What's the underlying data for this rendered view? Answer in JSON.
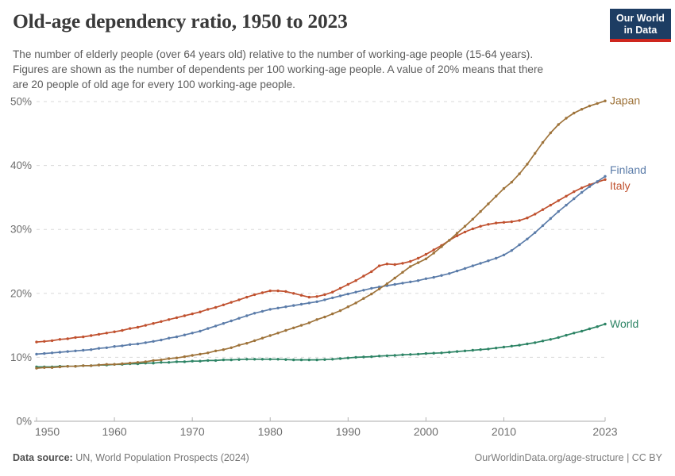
{
  "header": {
    "title": "Old-age dependency ratio, 1950 to 2023",
    "subtitle_lines": [
      "The number of elderly people (over 64 years old) relative to the number of working-age people (15-64 years).",
      "Figures are shown as the number of dependents per 100 working-age people. A value of 20% means that there",
      "are 20 people of old age for every 100 working-age people."
    ],
    "logo": {
      "line1": "Our World",
      "line2": "in Data",
      "bg_color": "#1d3d63",
      "bar_color": "#ce261e"
    }
  },
  "chart_data": {
    "type": "line",
    "title": "Old-age dependency ratio, 1950 to 2023",
    "unit": "%",
    "xlim": [
      1950,
      2023
    ],
    "ylim": [
      0,
      50
    ],
    "x_ticks": [
      1950,
      1960,
      1970,
      1980,
      1990,
      2000,
      2010,
      2023
    ],
    "y_ticks": [
      0,
      10,
      20,
      30,
      40,
      50
    ],
    "grid": "dashed-horizontal",
    "legend_position": "right-end-labels",
    "x": [
      1950,
      1951,
      1952,
      1953,
      1954,
      1955,
      1956,
      1957,
      1958,
      1959,
      1960,
      1961,
      1962,
      1963,
      1964,
      1965,
      1966,
      1967,
      1968,
      1969,
      1970,
      1971,
      1972,
      1973,
      1974,
      1975,
      1976,
      1977,
      1978,
      1979,
      1980,
      1981,
      1982,
      1983,
      1984,
      1985,
      1986,
      1987,
      1988,
      1989,
      1990,
      1991,
      1992,
      1993,
      1994,
      1995,
      1996,
      1997,
      1998,
      1999,
      2000,
      2001,
      2002,
      2003,
      2004,
      2005,
      2006,
      2007,
      2008,
      2009,
      2010,
      2011,
      2012,
      2013,
      2014,
      2015,
      2016,
      2017,
      2018,
      2019,
      2020,
      2021,
      2022,
      2023
    ],
    "series": [
      {
        "name": "Italy",
        "color": "#c0512f",
        "values": [
          12.4,
          12.5,
          12.6,
          12.8,
          12.9,
          13.1,
          13.2,
          13.4,
          13.6,
          13.8,
          14.0,
          14.2,
          14.5,
          14.7,
          15.0,
          15.3,
          15.6,
          15.9,
          16.2,
          16.5,
          16.8,
          17.1,
          17.5,
          17.8,
          18.2,
          18.6,
          19.0,
          19.4,
          19.8,
          20.1,
          20.4,
          20.4,
          20.3,
          20.0,
          19.7,
          19.4,
          19.5,
          19.8,
          20.2,
          20.8,
          21.4,
          22.0,
          22.7,
          23.4,
          24.3,
          24.6,
          24.5,
          24.7,
          25.0,
          25.5,
          26.1,
          26.8,
          27.5,
          28.3,
          29.0,
          29.6,
          30.1,
          30.5,
          30.8,
          31.0,
          31.1,
          31.2,
          31.4,
          31.8,
          32.4,
          33.1,
          33.8,
          34.5,
          35.2,
          35.9,
          36.5,
          37.0,
          37.4,
          37.8
        ]
      },
      {
        "name": "Finland",
        "color": "#5b7ca9",
        "values": [
          10.5,
          10.6,
          10.7,
          10.8,
          10.9,
          11.0,
          11.1,
          11.2,
          11.4,
          11.5,
          11.7,
          11.8,
          12.0,
          12.1,
          12.3,
          12.5,
          12.7,
          13.0,
          13.2,
          13.5,
          13.8,
          14.1,
          14.5,
          14.9,
          15.3,
          15.7,
          16.1,
          16.5,
          16.9,
          17.2,
          17.5,
          17.7,
          17.9,
          18.1,
          18.3,
          18.5,
          18.7,
          19.0,
          19.3,
          19.6,
          19.9,
          20.2,
          20.5,
          20.8,
          21.0,
          21.2,
          21.4,
          21.6,
          21.8,
          22.0,
          22.3,
          22.5,
          22.8,
          23.1,
          23.5,
          23.9,
          24.3,
          24.7,
          25.1,
          25.5,
          26.0,
          26.7,
          27.6,
          28.5,
          29.5,
          30.6,
          31.7,
          32.8,
          33.8,
          34.8,
          35.8,
          36.7,
          37.5,
          38.3
        ]
      },
      {
        "name": "World",
        "color": "#2d8465",
        "values": [
          8.5,
          8.5,
          8.5,
          8.6,
          8.6,
          8.6,
          8.7,
          8.7,
          8.8,
          8.8,
          8.9,
          8.9,
          9.0,
          9.0,
          9.1,
          9.1,
          9.2,
          9.2,
          9.3,
          9.3,
          9.4,
          9.4,
          9.5,
          9.5,
          9.6,
          9.6,
          9.65,
          9.7,
          9.7,
          9.7,
          9.7,
          9.7,
          9.65,
          9.6,
          9.6,
          9.6,
          9.6,
          9.65,
          9.7,
          9.8,
          9.9,
          10.0,
          10.05,
          10.1,
          10.2,
          10.25,
          10.3,
          10.4,
          10.45,
          10.5,
          10.6,
          10.65,
          10.7,
          10.8,
          10.9,
          11.0,
          11.1,
          11.2,
          11.3,
          11.45,
          11.6,
          11.75,
          11.9,
          12.1,
          12.3,
          12.55,
          12.8,
          13.1,
          13.45,
          13.8,
          14.1,
          14.45,
          14.8,
          15.2
        ]
      },
      {
        "name": "Japan",
        "color": "#9e733a",
        "values": [
          8.3,
          8.4,
          8.4,
          8.5,
          8.6,
          8.6,
          8.7,
          8.7,
          8.8,
          8.9,
          8.9,
          9.0,
          9.1,
          9.2,
          9.3,
          9.5,
          9.6,
          9.8,
          9.9,
          10.1,
          10.3,
          10.5,
          10.7,
          11.0,
          11.2,
          11.5,
          11.9,
          12.2,
          12.6,
          13.0,
          13.4,
          13.8,
          14.2,
          14.6,
          15.0,
          15.4,
          15.9,
          16.3,
          16.8,
          17.3,
          17.9,
          18.5,
          19.2,
          19.9,
          20.7,
          21.5,
          22.4,
          23.3,
          24.2,
          24.8,
          25.4,
          26.3,
          27.3,
          28.3,
          29.4,
          30.5,
          31.6,
          32.8,
          34.0,
          35.2,
          36.4,
          37.4,
          38.7,
          40.2,
          41.9,
          43.6,
          45.1,
          46.4,
          47.4,
          48.2,
          48.8,
          49.3,
          49.7,
          50.1
        ]
      }
    ]
  },
  "footer": {
    "source_label": "Data source:",
    "source_text": " UN, World Population Prospects (2024)",
    "credit": "OurWorldinData.org/age-structure | CC BY"
  }
}
